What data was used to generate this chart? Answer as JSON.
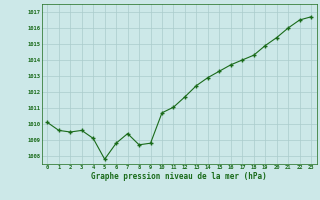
{
  "x": [
    0,
    1,
    2,
    3,
    4,
    5,
    6,
    7,
    8,
    9,
    10,
    11,
    12,
    13,
    14,
    15,
    16,
    17,
    18,
    19,
    20,
    21,
    22,
    23
  ],
  "y": [
    1010.1,
    1009.6,
    1009.5,
    1009.6,
    1009.1,
    1007.8,
    1008.8,
    1009.4,
    1008.7,
    1008.8,
    1010.7,
    1011.05,
    1011.7,
    1012.4,
    1012.9,
    1013.3,
    1013.7,
    1014.0,
    1014.3,
    1014.9,
    1015.4,
    1016.0,
    1016.5,
    1016.7
  ],
  "line_color": "#1a6b1a",
  "marker_color": "#1a6b1a",
  "bg_color": "#cce8e8",
  "grid_color": "#aacccc",
  "xlabel": "Graphe pression niveau de la mer (hPa)",
  "xlabel_color": "#1a6b1a",
  "ylabel_ticks": [
    1008,
    1009,
    1010,
    1011,
    1012,
    1013,
    1014,
    1015,
    1016,
    1017
  ],
  "ylim": [
    1007.5,
    1017.5
  ],
  "xlim": [
    -0.5,
    23.5
  ],
  "xtick_labels": [
    "0",
    "1",
    "2",
    "3",
    "4",
    "5",
    "6",
    "7",
    "8",
    "9",
    "10",
    "11",
    "12",
    "13",
    "14",
    "15",
    "16",
    "17",
    "18",
    "19",
    "20",
    "21",
    "22",
    "23"
  ]
}
